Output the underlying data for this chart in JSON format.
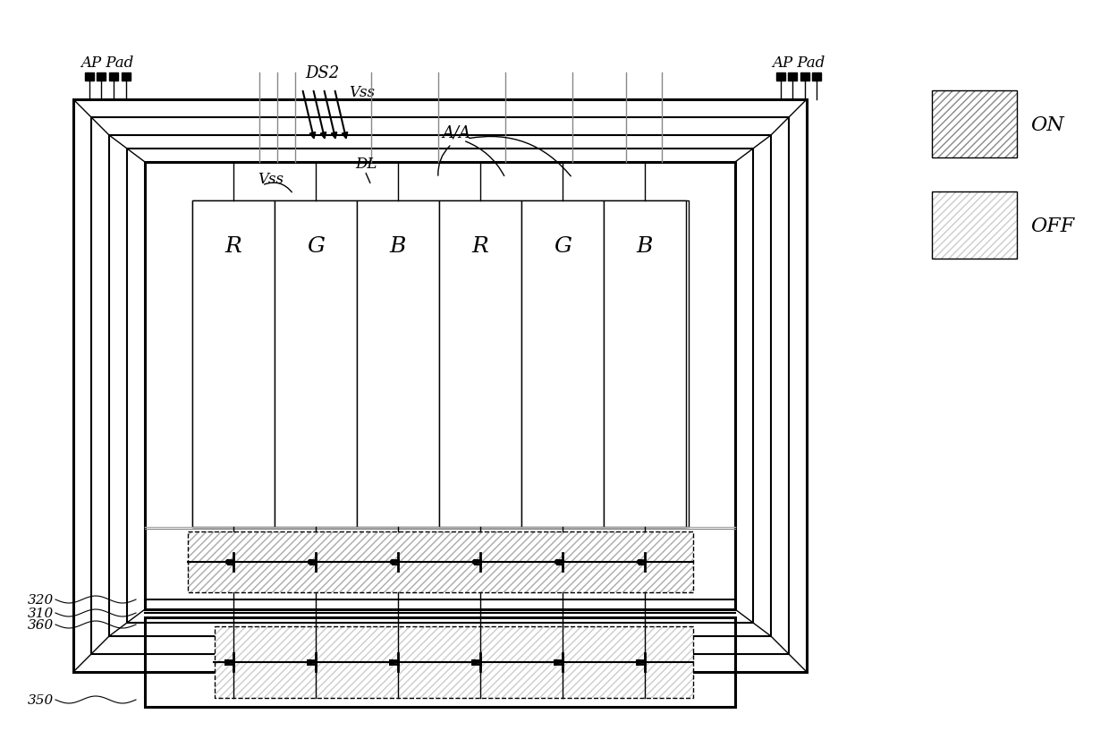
{
  "bg_color": "#ffffff",
  "lc": "#000000",
  "pixel_labels": [
    "R",
    "G",
    "B",
    "R",
    "G",
    "B"
  ],
  "label_320": "320",
  "label_310": "310",
  "label_360": "360",
  "label_350": "350",
  "label_DS2": "DS2",
  "label_Vss_top": "Vss",
  "label_Vss2": "Vss",
  "label_DL": "DL",
  "label_AA": "A/A",
  "label_APPad": "AP Pad",
  "label_ON": "ON",
  "label_OFF": "OFF",
  "figw": 12.4,
  "figh": 8.37,
  "dpi": 100
}
